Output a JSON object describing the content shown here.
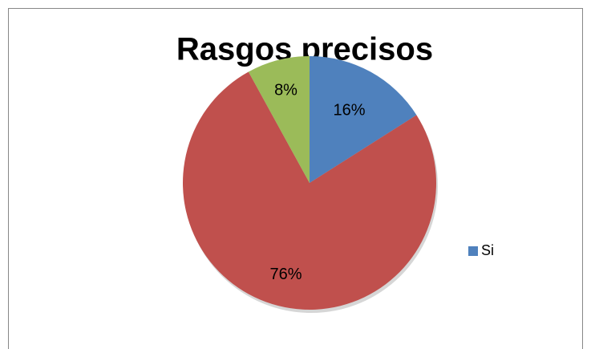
{
  "chart_data": {
    "type": "pie",
    "title": "Rasgos precisos",
    "categories": [
      "Si",
      null,
      null
    ],
    "values": [
      16,
      76,
      8
    ],
    "value_labels": [
      "16%",
      "76%",
      "8%"
    ],
    "colors": [
      "#4f81bd",
      "#c0504d",
      "#9bbb59"
    ],
    "legend": "right"
  }
}
